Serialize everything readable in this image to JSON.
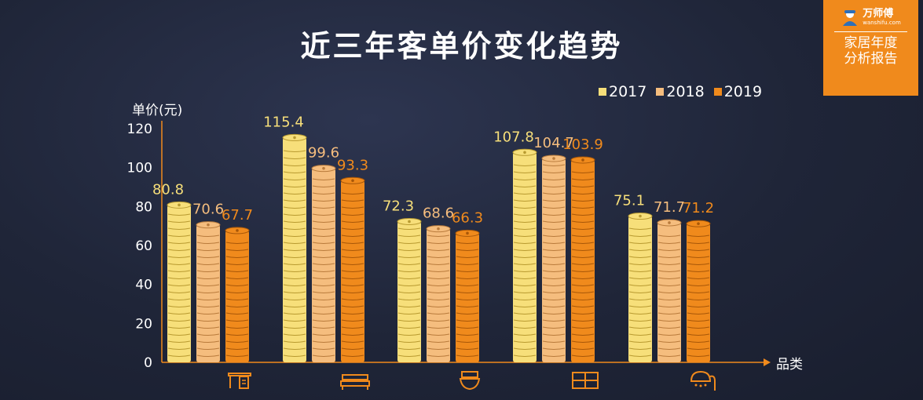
{
  "badge": {
    "brand": "万师傅",
    "url": "wanshifu.com",
    "line1": "家居年度",
    "line2": "分析报告"
  },
  "colors": {
    "s2017": "#f7df7a",
    "s2018": "#f5bd7e",
    "s2019": "#f08a1c",
    "axis": "#f08a1c",
    "background": "#1f2538"
  },
  "chart_data": {
    "type": "bar",
    "title": "近三年客单价变化趋势",
    "ylabel": "单价(元)",
    "xlabel": "品类",
    "ylim": [
      0,
      120
    ],
    "yticks": [
      0,
      20,
      40,
      60,
      80,
      100,
      120
    ],
    "categories": [
      "",
      "",
      "",
      "",
      ""
    ],
    "category_icons": [
      "desk-icon",
      "bed-icon",
      "toilet-icon",
      "cabinet-icon",
      "shower-icon"
    ],
    "series": [
      {
        "name": "2017",
        "values": [
          80.8,
          115.4,
          72.3,
          107.8,
          75.1
        ]
      },
      {
        "name": "2018",
        "values": [
          70.6,
          99.6,
          68.6,
          104.7,
          71.7
        ]
      },
      {
        "name": "2019",
        "values": [
          67.7,
          93.3,
          66.3,
          103.9,
          71.2
        ]
      }
    ],
    "legend_position": "top-right",
    "grid": false
  }
}
